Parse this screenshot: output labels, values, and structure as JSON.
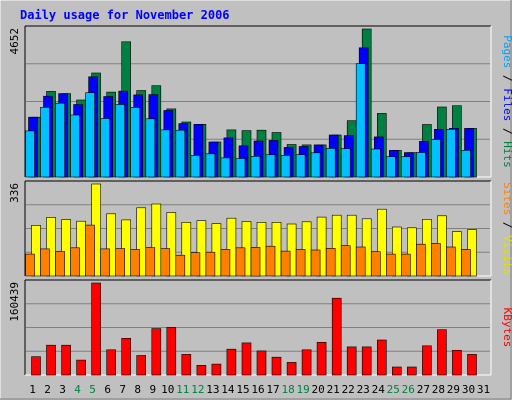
{
  "chart_data": [
    {
      "type": "bar",
      "title": "Daily usage for November 2006",
      "categories": [
        "1",
        "2",
        "3",
        "4",
        "5",
        "6",
        "7",
        "8",
        "9",
        "10",
        "11",
        "12",
        "13",
        "14",
        "15",
        "16",
        "17",
        "18",
        "19",
        "20",
        "21",
        "22",
        "23",
        "24",
        "25",
        "26",
        "27",
        "28",
        "29",
        "30",
        "31"
      ],
      "weekend_days": [
        "4",
        "5",
        "11",
        "12",
        "18",
        "19",
        "25",
        "26"
      ],
      "ymax_label": "4652",
      "ylim": [
        0,
        4652
      ],
      "ylabel_parts": [
        {
          "text": "Pages",
          "color": "#00a0ff"
        },
        {
          "text": " / ",
          "color": "#000000"
        },
        {
          "text": "Files",
          "color": "#0000ff"
        },
        {
          "text": " / ",
          "color": "#000000"
        },
        {
          "text": "Hits",
          "color": "#008040"
        }
      ],
      "series": [
        {
          "name": "Hits",
          "color": "#008040",
          "values": [
            1880,
            2690,
            2620,
            2420,
            3270,
            2670,
            4251,
            2720,
            2870,
            2140,
            1730,
            1657,
            1100,
            1480,
            1460,
            1470,
            1400,
            1020,
            1010,
            1010,
            1320,
            1770,
            4652,
            1998,
            837,
            766,
            1651,
            2200,
            2240,
            1528,
            0
          ]
        },
        {
          "name": "Files",
          "color": "#0000ff",
          "values": [
            1880,
            2540,
            2620,
            2280,
            3150,
            2530,
            2700,
            2580,
            2590,
            2090,
            1680,
            1657,
            1100,
            1230,
            980,
            1130,
            1150,
            930,
            960,
            1010,
            1320,
            1300,
            4060,
            1260,
            837,
            766,
            1120,
            1500,
            1530,
            1528,
            0
          ]
        },
        {
          "name": "Pages",
          "color": "#00c0ff",
          "values": [
            1450,
            2190,
            2320,
            1950,
            2650,
            1840,
            2280,
            2190,
            1830,
            1480,
            1470,
            682,
            730,
            600,
            580,
            650,
            700,
            680,
            700,
            760,
            900,
            890,
            3560,
            880,
            640,
            640,
            770,
            1180,
            1500,
            840,
            0
          ]
        }
      ]
    },
    {
      "type": "bar",
      "categories": [
        "1",
        "2",
        "3",
        "4",
        "5",
        "6",
        "7",
        "8",
        "9",
        "10",
        "11",
        "12",
        "13",
        "14",
        "15",
        "16",
        "17",
        "18",
        "19",
        "20",
        "21",
        "22",
        "23",
        "24",
        "25",
        "26",
        "27",
        "28",
        "29",
        "30",
        "31"
      ],
      "ymax_label": "336",
      "ylim": [
        0,
        336
      ],
      "ylabel_parts": [
        {
          "text": "Sites",
          "color": "#ff8000"
        },
        {
          "text": " / ",
          "color": "#000000"
        },
        {
          "text": "Visits",
          "color": "#e0e000"
        }
      ],
      "series": [
        {
          "name": "Visits",
          "color": "#ffff00",
          "values": [
            185,
            214,
            206,
            200,
            336,
            227,
            205,
            249,
            263,
            232,
            196,
            202,
            191,
            211,
            199,
            196,
            196,
            190,
            198,
            215,
            222,
            222,
            209,
            244,
            179,
            176,
            207,
            220,
            162,
            169,
            0
          ]
        },
        {
          "name": "Sites",
          "color": "#ff8000",
          "values": [
            80,
            99,
            90,
            103,
            186,
            99,
            100,
            97,
            104,
            100,
            76,
            85,
            87,
            97,
            103,
            105,
            109,
            91,
            97,
            95,
            101,
            111,
            106,
            89,
            80,
            80,
            116,
            119,
            106,
            97,
            0
          ]
        }
      ]
    },
    {
      "type": "bar",
      "categories": [
        "1",
        "2",
        "3",
        "4",
        "5",
        "6",
        "7",
        "8",
        "9",
        "10",
        "11",
        "12",
        "13",
        "14",
        "15",
        "16",
        "17",
        "18",
        "19",
        "20",
        "21",
        "22",
        "23",
        "24",
        "25",
        "26",
        "27",
        "28",
        "29",
        "30",
        "31"
      ],
      "ymax_label": "160439",
      "ylim": [
        0,
        160439
      ],
      "ylabel_parts": [
        {
          "text": "KBytes",
          "color": "#ff0000"
        }
      ],
      "series": [
        {
          "name": "KBytes",
          "color": "#ff0000",
          "values": [
            32000,
            52000,
            52000,
            26000,
            160439,
            44000,
            64000,
            34000,
            81000,
            83000,
            36000,
            17000,
            19000,
            45000,
            56000,
            42000,
            31000,
            22000,
            44000,
            57000,
            134000,
            49000,
            49000,
            61000,
            14000,
            14000,
            51000,
            79000,
            43000,
            36000,
            0
          ]
        }
      ]
    }
  ]
}
